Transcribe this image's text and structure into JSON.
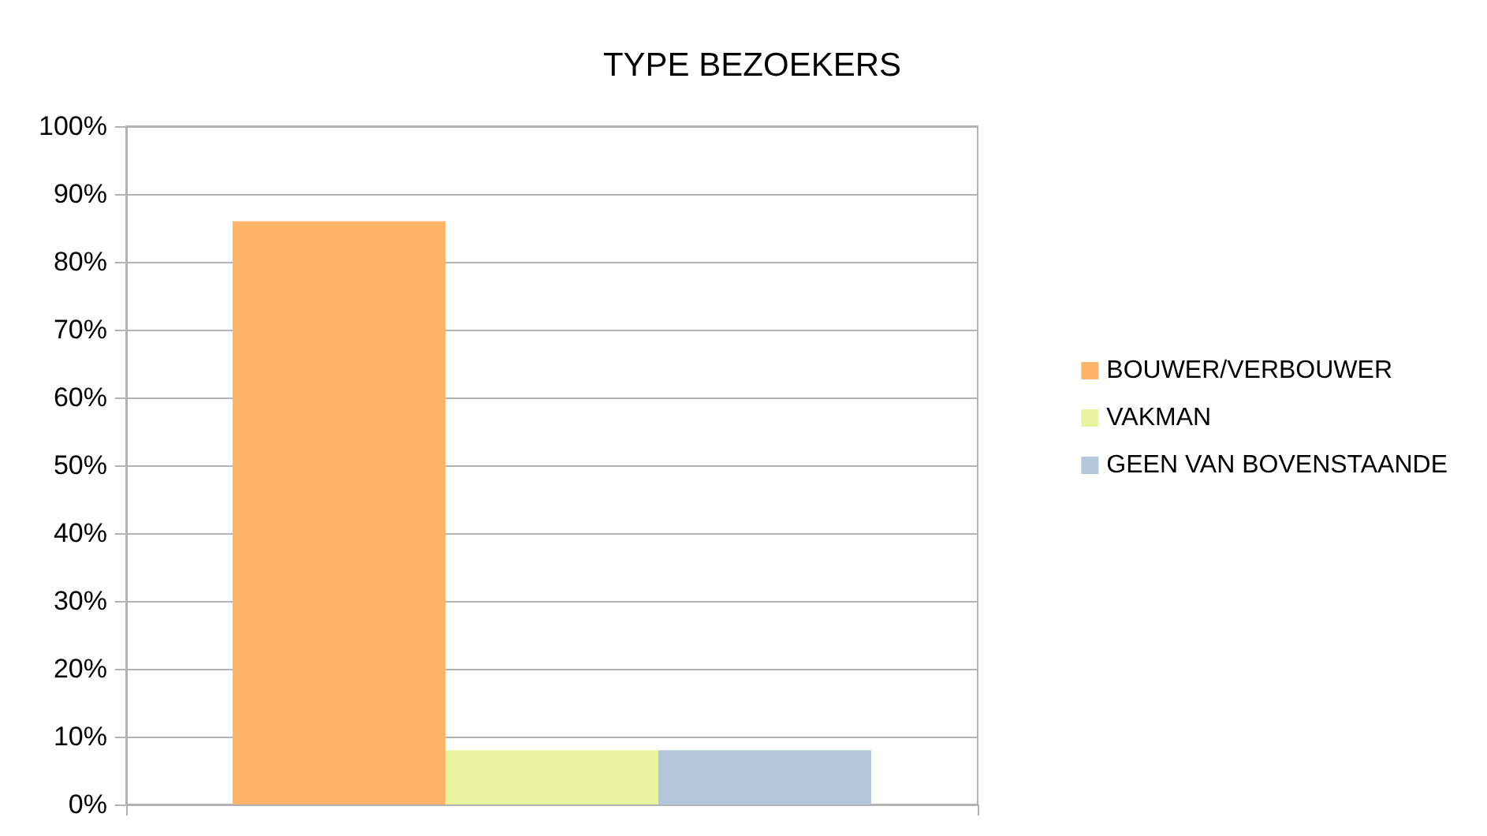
{
  "chart_data": {
    "type": "bar",
    "title": "TYPE BEZOEKERS",
    "categories": [
      null
    ],
    "series": [
      {
        "name": "BOUWER/VERBOUWER",
        "color": "#ffb46b",
        "values": [
          86
        ]
      },
      {
        "name": "VAKMAN",
        "color": "#e8f59e",
        "values": [
          8
        ]
      },
      {
        "name": "GEEN VAN BOVENSTAANDE",
        "color": "#b4c7dc",
        "values": [
          8
        ]
      }
    ],
    "ylim": [
      0,
      100
    ],
    "yticks": [
      {
        "value": 0,
        "label": "0%"
      },
      {
        "value": 10,
        "label": "10%"
      },
      {
        "value": 20,
        "label": "20%"
      },
      {
        "value": 30,
        "label": "30%"
      },
      {
        "value": 40,
        "label": "40%"
      },
      {
        "value": 50,
        "label": "50%"
      },
      {
        "value": 60,
        "label": "60%"
      },
      {
        "value": 70,
        "label": "70%"
      },
      {
        "value": 80,
        "label": "80%"
      },
      {
        "value": 90,
        "label": "90%"
      },
      {
        "value": 100,
        "label": "100%"
      }
    ],
    "grid": "y",
    "legend": "right"
  }
}
